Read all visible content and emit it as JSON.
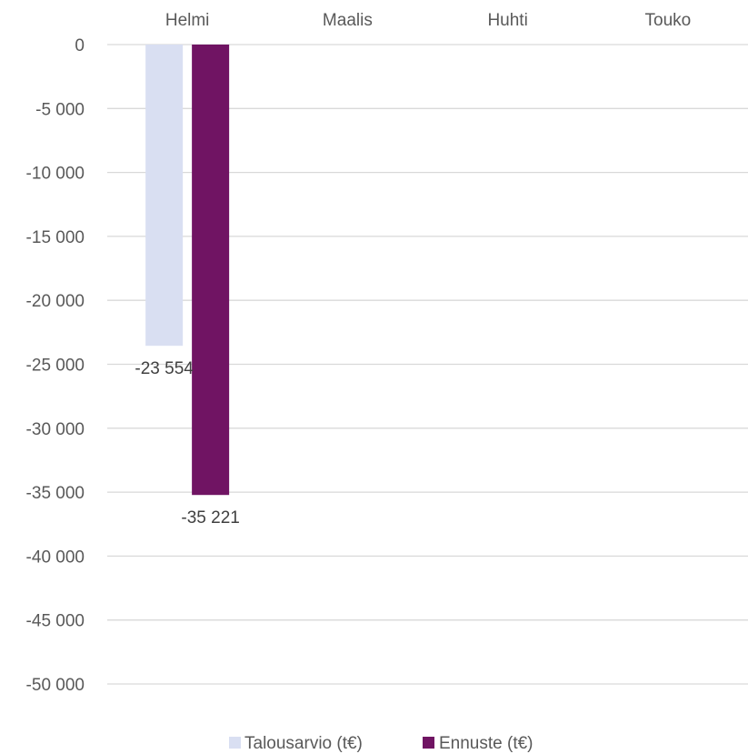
{
  "chart_data": {
    "type": "bar",
    "categories": [
      "Helmi",
      "Maalis",
      "Huhti",
      "Touko"
    ],
    "series": [
      {
        "name": "Talousarvio (t€)",
        "color": "#d9dff2",
        "values": [
          -23554,
          null,
          null,
          null
        ],
        "labels": [
          "-23 554",
          "",
          "",
          ""
        ]
      },
      {
        "name": "Ennuste (t€)",
        "color": "#701463",
        "values": [
          -35221,
          null,
          null,
          null
        ],
        "labels": [
          "-35 221",
          "",
          "",
          ""
        ]
      }
    ],
    "ylim": [
      -50000,
      0
    ],
    "yticks": [
      0,
      -5000,
      -10000,
      -15000,
      -20000,
      -25000,
      -30000,
      -35000,
      -40000,
      -45000,
      -50000
    ],
    "ytick_labels": [
      "0",
      "-5 000",
      "-10 000",
      "-15 000",
      "-20 000",
      "-25 000",
      "-30 000",
      "-35 000",
      "-40 000",
      "-45 000",
      "-50 000"
    ],
    "xaxis_position": "top",
    "grid": true,
    "gridline_color": "#d9d9d9",
    "legend_position": "bottom",
    "title": "",
    "xlabel": "",
    "ylabel": ""
  }
}
